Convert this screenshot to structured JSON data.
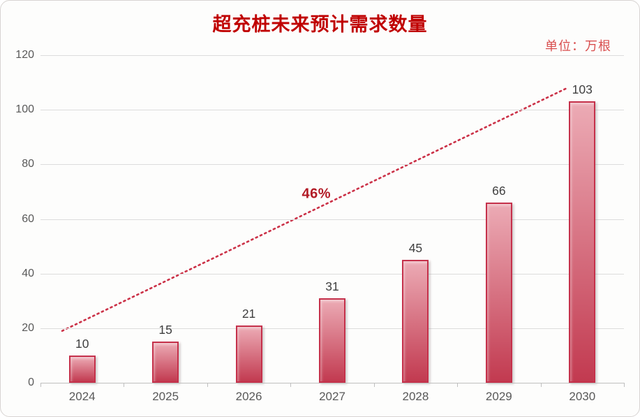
{
  "page": {
    "background": "#fdfdfc",
    "border_color": "#d8d4d2"
  },
  "chart_data": {
    "type": "bar",
    "title": "超充桩未来预计需求数量",
    "unit_label": "单位：万根",
    "categories": [
      "2024",
      "2025",
      "2026",
      "2027",
      "2028",
      "2029",
      "2030"
    ],
    "values": [
      10,
      15,
      21,
      31,
      45,
      66,
      103
    ],
    "xlabel": "",
    "ylabel": "",
    "ylim": [
      0,
      120
    ],
    "ytick_step": 20,
    "yticks": [
      "0",
      "20",
      "40",
      "60",
      "80",
      "100",
      "120"
    ],
    "grid": true,
    "legend_position": "none",
    "trendline": {
      "label": "46%",
      "from": {
        "x": 0.26,
        "y": 19
      },
      "to": {
        "x": 6.32,
        "y": 108
      },
      "label_pos": {
        "x": 3.31,
        "y": 69
      }
    },
    "colors": {
      "title": "#c00000",
      "unit": "#d94f4f",
      "bar_top": "#ecabb5",
      "bar_bottom": "#c23a50",
      "bar_border": "#c5314b",
      "trend": "#cb3147",
      "trend_label": "#b21b26",
      "axis_text": "#595959",
      "value_text": "#3f3f3f",
      "gridline": "#dcdcdc",
      "axis_line": "#bfbfbf"
    }
  }
}
